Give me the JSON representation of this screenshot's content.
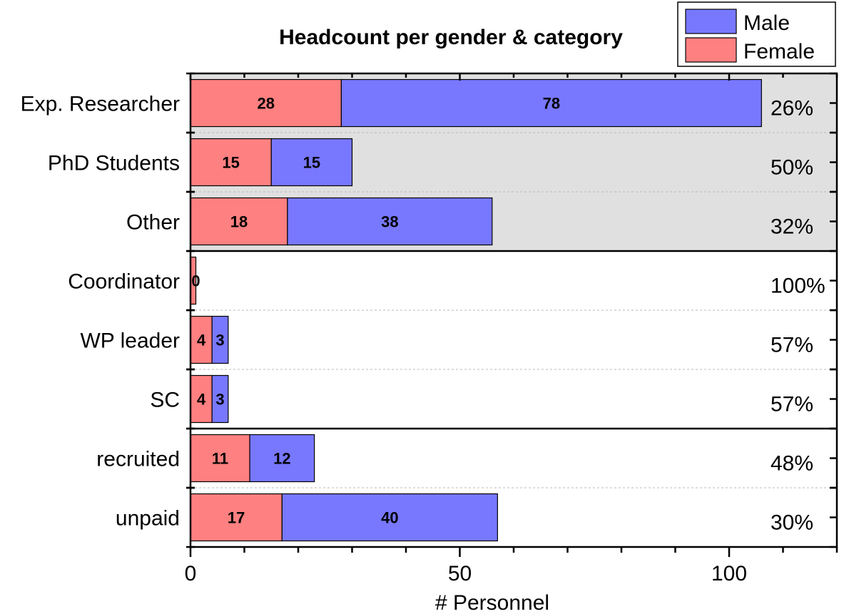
{
  "chart_data": {
    "type": "bar",
    "orientation": "horizontal",
    "stacked": true,
    "title": "Headcount per gender & category",
    "xlabel": "# Personnel",
    "ylabel": "",
    "xlim": [
      0,
      120
    ],
    "xticks": [
      0,
      50,
      100
    ],
    "categories": [
      "Exp. Researcher",
      "PhD Students",
      "Other",
      "Coordinator",
      "WP leader",
      "SC",
      "recruited",
      "unpaid"
    ],
    "groups": [
      {
        "categories": [
          "Exp. Researcher",
          "PhD Students",
          "Other"
        ],
        "shaded": true
      },
      {
        "categories": [
          "Coordinator",
          "WP leader",
          "SC"
        ],
        "shaded": false
      },
      {
        "categories": [
          "recruited",
          "unpaid"
        ],
        "shaded": false
      }
    ],
    "series": [
      {
        "name": "Female",
        "color": "#ff8080",
        "values": [
          28,
          15,
          18,
          1,
          4,
          4,
          11,
          17
        ],
        "labels": [
          "28",
          "15",
          "18",
          "",
          "4",
          "4",
          "11",
          "17"
        ]
      },
      {
        "name": "Male",
        "color": "#7878ff",
        "values": [
          78,
          15,
          38,
          0,
          3,
          3,
          12,
          40
        ],
        "labels": [
          "78",
          "15",
          "38",
          "0",
          "3",
          "3",
          "12",
          "40"
        ]
      }
    ],
    "right_labels": [
      "26%",
      "50%",
      "32%",
      "100%",
      "57%",
      "57%",
      "48%",
      "30%"
    ],
    "legend": {
      "position": "top-right",
      "entries": [
        "Male",
        "Female"
      ]
    },
    "grid": "dashed horizontal separators within groups",
    "shaded_group_color": "#e0e0e0"
  }
}
